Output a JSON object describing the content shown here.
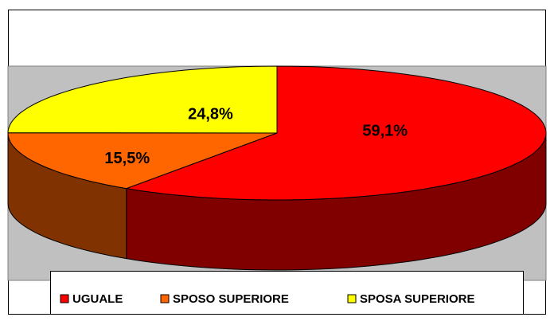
{
  "chart_data": {
    "type": "pie",
    "categories": [
      "UGUALE",
      "SPOSO SUPERIORE",
      "SPOSA SUPERIORE"
    ],
    "values": [
      59.1,
      15.5,
      24.8
    ],
    "value_labels": [
      "59,1%",
      "15,5%",
      "24,8%"
    ],
    "colors": [
      "#ff0000",
      "#ff6600",
      "#ffff00"
    ]
  }
}
